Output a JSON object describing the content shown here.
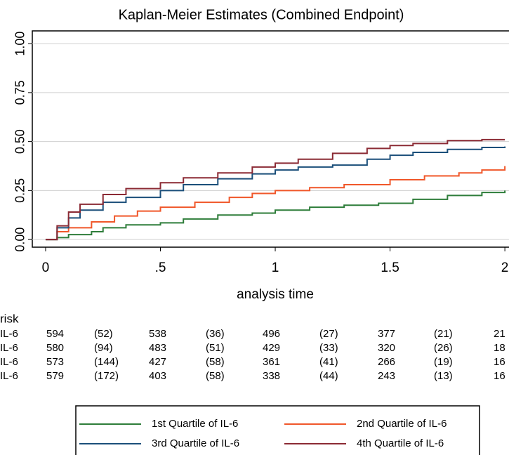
{
  "chart_data": {
    "type": "step",
    "title": "Kaplan-Meier Estimates (Combined Endpoint)",
    "x_label": "analysis time",
    "xlim": [
      -0.058,
      2.018
    ],
    "ylim": [
      -0.039,
      1.065
    ],
    "xticks": [
      0,
      {
        "value": 0.5,
        "label": ".5"
      },
      1,
      1.5,
      2
    ],
    "yticks": [
      {
        "value": 0,
        "label": "0.00"
      },
      {
        "value": 0.25,
        "label": "0.25"
      },
      {
        "value": 0.5,
        "label": "0.50"
      },
      {
        "value": 0.75,
        "label": "0.75"
      },
      {
        "value": 1,
        "label": "1.00"
      }
    ],
    "grid": true,
    "series": [
      {
        "name": "1st Quartile of IL-6",
        "color": "#2e7d3a",
        "x": [
          0,
          0.05,
          0.1,
          0.2,
          0.25,
          0.35,
          0.5,
          0.6,
          0.75,
          0.9,
          1.0,
          1.15,
          1.3,
          1.45,
          1.6,
          1.75,
          1.9,
          2.0
        ],
        "values": [
          0,
          0.01,
          0.025,
          0.04,
          0.06,
          0.075,
          0.085,
          0.105,
          0.125,
          0.135,
          0.15,
          0.165,
          0.175,
          0.185,
          0.205,
          0.225,
          0.24,
          0.25
        ]
      },
      {
        "name": "2nd Quartile of IL-6",
        "color": "#f0572a",
        "x": [
          0,
          0.05,
          0.1,
          0.2,
          0.3,
          0.4,
          0.5,
          0.65,
          0.8,
          0.9,
          1.0,
          1.15,
          1.3,
          1.5,
          1.65,
          1.8,
          1.9,
          2.0
        ],
        "values": [
          0,
          0.04,
          0.06,
          0.09,
          0.12,
          0.145,
          0.165,
          0.19,
          0.215,
          0.235,
          0.25,
          0.265,
          0.28,
          0.305,
          0.325,
          0.34,
          0.355,
          0.375
        ]
      },
      {
        "name": "3rd Quartile of IL-6",
        "color": "#1b4f7a",
        "x": [
          0,
          0.05,
          0.1,
          0.15,
          0.25,
          0.35,
          0.5,
          0.6,
          0.75,
          0.9,
          1.0,
          1.1,
          1.25,
          1.4,
          1.5,
          1.6,
          1.75,
          1.9,
          2.0
        ],
        "values": [
          0,
          0.06,
          0.11,
          0.15,
          0.19,
          0.215,
          0.25,
          0.28,
          0.31,
          0.335,
          0.355,
          0.37,
          0.38,
          0.41,
          0.43,
          0.445,
          0.46,
          0.47,
          0.475
        ]
      },
      {
        "name": "4th Quartile of IL-6",
        "color": "#8b2a34",
        "x": [
          0,
          0.05,
          0.1,
          0.15,
          0.25,
          0.35,
          0.5,
          0.6,
          0.75,
          0.9,
          1.0,
          1.1,
          1.25,
          1.4,
          1.5,
          1.6,
          1.75,
          1.9,
          2.0
        ],
        "values": [
          0,
          0.07,
          0.14,
          0.18,
          0.23,
          0.26,
          0.29,
          0.315,
          0.34,
          0.37,
          0.39,
          0.41,
          0.44,
          0.465,
          0.48,
          0.49,
          0.505,
          0.51,
          0.51
        ]
      }
    ],
    "risk_table": {
      "title": "risk",
      "rows": [
        {
          "label": "IL-6",
          "cells": [
            "594",
            "(52)",
            "538",
            "(36)",
            "496",
            "(27)",
            "377",
            "(21)",
            "21"
          ]
        },
        {
          "label": "IL-6",
          "cells": [
            "580",
            "(94)",
            "483",
            "(51)",
            "429",
            "(33)",
            "320",
            "(26)",
            "18"
          ]
        },
        {
          "label": "IL-6",
          "cells": [
            "573",
            "(144)",
            "427",
            "(58)",
            "361",
            "(41)",
            "266",
            "(19)",
            "16"
          ]
        },
        {
          "label": "IL-6",
          "cells": [
            "579",
            "(172)",
            "403",
            "(58)",
            "338",
            "(44)",
            "243",
            "(13)",
            "16"
          ]
        }
      ]
    }
  }
}
